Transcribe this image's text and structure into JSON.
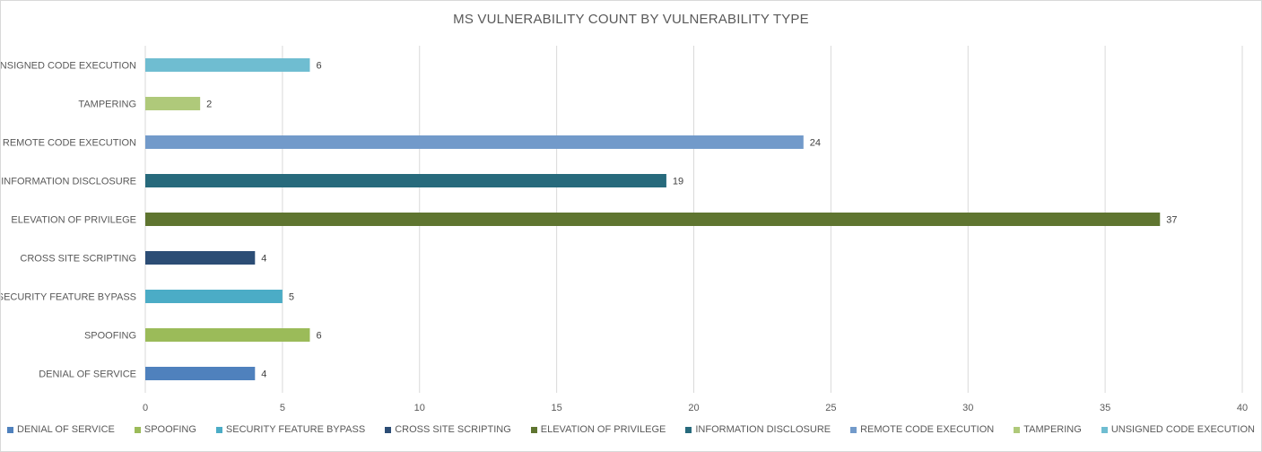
{
  "chart_data": {
    "type": "bar",
    "orientation": "horizontal",
    "title": "MS VULNERABILITY COUNT BY VULNERABILITY TYPE",
    "categories": [
      "DENIAL OF SERVICE",
      "SPOOFING",
      "SECURITY FEATURE BYPASS",
      "CROSS SITE SCRIPTING",
      "ELEVATION OF PRIVILEGE",
      "INFORMATION DISCLOSURE",
      "REMOTE CODE EXECUTION",
      "TAMPERING",
      "UNSIGNED CODE EXECUTION"
    ],
    "values": [
      4,
      6,
      5,
      4,
      37,
      19,
      24,
      2,
      6
    ],
    "colors": [
      "#4f81bd",
      "#9bbb59",
      "#4bacc6",
      "#2c4d75",
      "#5f7530",
      "#276a7c",
      "#729aca",
      "#afc97a",
      "#6fbdd1"
    ],
    "xlim": [
      0,
      40
    ],
    "xticks": [
      "0",
      "5",
      "10",
      "15",
      "20",
      "25",
      "30",
      "35",
      "40"
    ],
    "grid": true,
    "legend_position": "bottom",
    "data_labels": [
      "4",
      "6",
      "5",
      "4",
      "37",
      "19",
      "24",
      "2",
      "6"
    ]
  }
}
